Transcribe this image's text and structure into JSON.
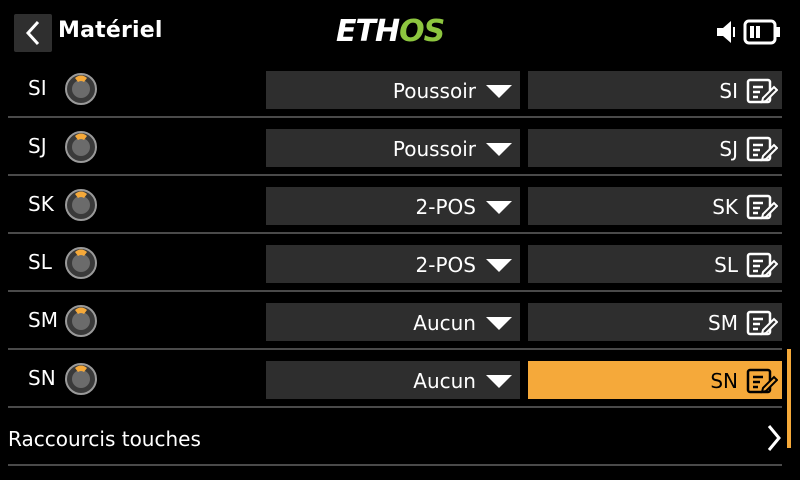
{
  "header": {
    "title": "Matériel",
    "logo_main": "ETH",
    "logo_accent": "OS",
    "logo_accent_color": "#8dc63f"
  },
  "rows": [
    {
      "label": "SI",
      "type": "Poussoir",
      "name": "SI"
    },
    {
      "label": "SJ",
      "type": "Poussoir",
      "name": "SJ"
    },
    {
      "label": "SK",
      "type": "2-POS",
      "name": "SK"
    },
    {
      "label": "SL",
      "type": "2-POS",
      "name": "SL"
    },
    {
      "label": "SM",
      "type": "Aucun",
      "name": "SM"
    },
    {
      "label": "SN",
      "type": "Aucun",
      "name": "SN"
    }
  ],
  "shortcut": {
    "label": "Raccourcis touches"
  },
  "colors": {
    "accent": "#f5a93a",
    "field_bg": "#2e2e2e",
    "divider": "#4a4a4a"
  }
}
